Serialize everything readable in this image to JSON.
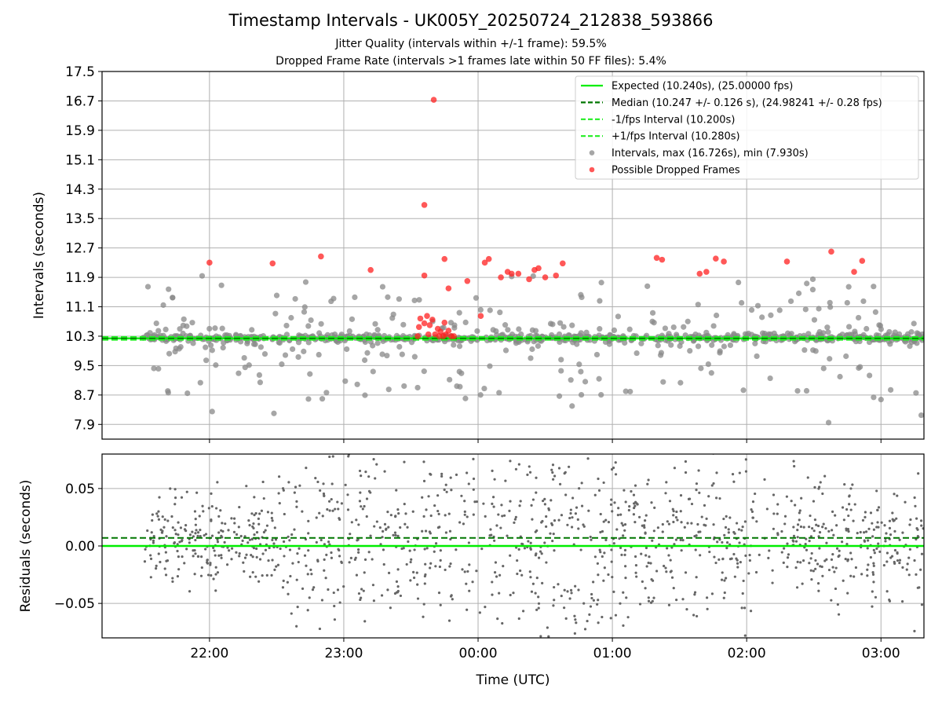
{
  "header": {
    "title": "Timestamp Intervals - UK005Y_20250724_212838_593866",
    "subtitle_jitter": "Jitter Quality (intervals within +/-1 frame): 59.5%",
    "subtitle_dropped": "Dropped Frame Rate (intervals >1 frames late within 50 FF files): 5.4%"
  },
  "colors": {
    "expected": "#00ee00",
    "median": "#007700",
    "fps_band": "#22ee22",
    "interval_points": "#888888",
    "dropped_points": "#ff2020",
    "residual_points": "#666666",
    "grid": "#b0b0b0"
  },
  "chart_data": [
    {
      "type": "scatter",
      "title": "",
      "xlabel": "",
      "ylabel": "Intervals (seconds)",
      "x_tick_labels": [
        "22:00",
        "23:00",
        "00:00",
        "01:00",
        "02:00",
        "03:00"
      ],
      "x_ticks_hours": [
        22.0,
        23.0,
        24.0,
        25.0,
        26.0,
        27.0
      ],
      "xlim_hours": [
        21.2,
        27.32
      ],
      "ylim": [
        7.5,
        17.5
      ],
      "y_ticks": [
        7.9,
        8.7,
        9.5,
        10.3,
        11.1,
        11.9,
        12.7,
        13.5,
        14.3,
        15.1,
        15.9,
        16.7,
        17.5
      ],
      "y_tick_labels": [
        "7.9",
        "8.7",
        "9.5",
        "10.3",
        "11.1",
        "11.9",
        "12.7",
        "13.5",
        "14.3",
        "15.1",
        "15.9",
        "16.7",
        "17.5"
      ],
      "grid": true,
      "legend_position": "top-right",
      "reference_lines": [
        {
          "name": "Expected (10.240s), (25.00000 fps)",
          "y": 10.24,
          "style": "solid",
          "color": "#00ee00"
        },
        {
          "name": "Median (10.247 +/- 0.126 s), (24.98241 +/- 0.28 fps)",
          "y": 10.247,
          "style": "dashed",
          "color": "#007700"
        },
        {
          "name": "-1/fps Interval (10.200s)",
          "y": 10.2,
          "style": "dashed",
          "color": "#22ee22"
        },
        {
          "name": "+1/fps Interval (10.280s)",
          "y": 10.28,
          "style": "dashed",
          "color": "#22ee22"
        }
      ],
      "series": [
        {
          "name": "Intervals, max (16.726s), min (7.930s)",
          "marker": "circle",
          "color": "#888888",
          "max": 16.726,
          "min": 7.93
        },
        {
          "name": "Possible Dropped Frames",
          "marker": "circle",
          "color": "#ff2020",
          "points": [
            {
              "x": 22.0,
              "y": 12.3
            },
            {
              "x": 22.47,
              "y": 12.28
            },
            {
              "x": 22.83,
              "y": 12.47
            },
            {
              "x": 23.2,
              "y": 12.1
            },
            {
              "x": 23.6,
              "y": 11.95
            },
            {
              "x": 23.6,
              "y": 13.87
            },
            {
              "x": 23.67,
              "y": 16.73
            },
            {
              "x": 23.75,
              "y": 12.4
            },
            {
              "x": 23.78,
              "y": 11.6
            },
            {
              "x": 23.92,
              "y": 11.8
            },
            {
              "x": 24.05,
              "y": 12.3
            },
            {
              "x": 24.08,
              "y": 12.4
            },
            {
              "x": 24.17,
              "y": 11.9
            },
            {
              "x": 24.22,
              "y": 12.05
            },
            {
              "x": 24.25,
              "y": 12.0
            },
            {
              "x": 24.3,
              "y": 12.0
            },
            {
              "x": 24.38,
              "y": 11.85
            },
            {
              "x": 24.42,
              "y": 12.1
            },
            {
              "x": 24.45,
              "y": 12.15
            },
            {
              "x": 24.5,
              "y": 11.9
            },
            {
              "x": 24.58,
              "y": 11.95
            },
            {
              "x": 24.63,
              "y": 12.28
            },
            {
              "x": 25.33,
              "y": 12.43
            },
            {
              "x": 25.37,
              "y": 12.38
            },
            {
              "x": 25.65,
              "y": 12.0
            },
            {
              "x": 25.7,
              "y": 12.05
            },
            {
              "x": 25.77,
              "y": 12.41
            },
            {
              "x": 25.83,
              "y": 12.33
            },
            {
              "x": 26.3,
              "y": 12.33
            },
            {
              "x": 26.63,
              "y": 12.6
            },
            {
              "x": 26.8,
              "y": 12.05
            },
            {
              "x": 26.86,
              "y": 12.35
            },
            {
              "x": 23.55,
              "y": 10.3
            },
            {
              "x": 23.56,
              "y": 10.55
            },
            {
              "x": 23.57,
              "y": 10.78
            },
            {
              "x": 23.6,
              "y": 10.65
            },
            {
              "x": 23.62,
              "y": 10.85
            },
            {
              "x": 23.63,
              "y": 10.35
            },
            {
              "x": 23.64,
              "y": 10.6
            },
            {
              "x": 23.66,
              "y": 10.75
            },
            {
              "x": 23.68,
              "y": 10.35
            },
            {
              "x": 23.7,
              "y": 10.5
            },
            {
              "x": 23.71,
              "y": 10.3
            },
            {
              "x": 23.72,
              "y": 10.42
            },
            {
              "x": 23.74,
              "y": 10.3
            },
            {
              "x": 23.75,
              "y": 10.67
            },
            {
              "x": 23.76,
              "y": 10.35
            },
            {
              "x": 23.78,
              "y": 10.45
            },
            {
              "x": 23.8,
              "y": 10.3
            },
            {
              "x": 23.82,
              "y": 10.3
            },
            {
              "x": 24.02,
              "y": 10.85
            }
          ]
        }
      ]
    },
    {
      "type": "scatter",
      "title": "",
      "xlabel": "Time (UTC)",
      "ylabel": "Residuals (seconds)",
      "x_tick_labels": [
        "22:00",
        "23:00",
        "00:00",
        "01:00",
        "02:00",
        "03:00"
      ],
      "x_ticks_hours": [
        22.0,
        23.0,
        24.0,
        25.0,
        26.0,
        27.0
      ],
      "xlim_hours": [
        21.2,
        27.32
      ],
      "ylim": [
        -0.08,
        0.08
      ],
      "y_ticks": [
        -0.05,
        0.0,
        0.05
      ],
      "y_tick_labels": [
        "−0.05",
        "0.00",
        "0.05"
      ],
      "grid": true,
      "reference_lines": [
        {
          "y": 0.0,
          "style": "solid",
          "color": "#00ee00"
        },
        {
          "y": 0.007,
          "style": "dashed",
          "color": "#007700"
        }
      ],
      "series": [
        {
          "marker": "point",
          "color": "#666666"
        }
      ]
    }
  ]
}
